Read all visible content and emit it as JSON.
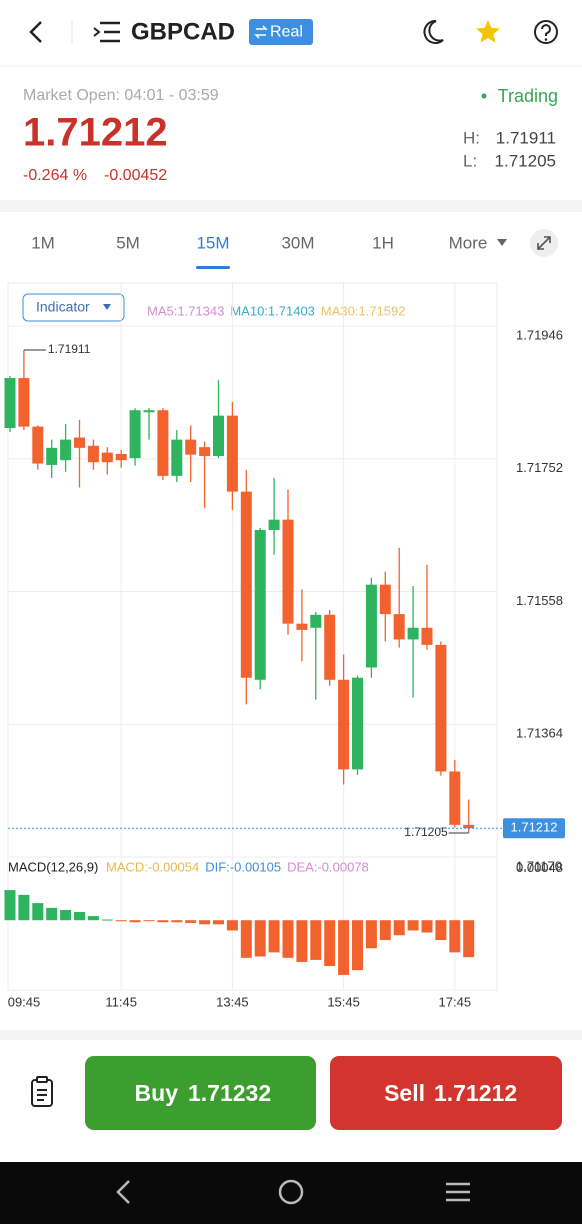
{
  "header": {
    "symbol": "GBPCAD",
    "account": "Real"
  },
  "quote": {
    "market_open": "Market Open: 04:01 - 03:59",
    "status": "Trading",
    "price": "1.71212",
    "change_pct": "-0.264 %",
    "change": "-0.00452",
    "high_label": "H:",
    "high": "1.71911",
    "low_label": "L:",
    "low": "1.71205"
  },
  "tabs": [
    "1M",
    "5M",
    "15M",
    "30M",
    "1H",
    "More"
  ],
  "active_tab": 2,
  "chart_data": {
    "type": "candlestick",
    "indicator_button": "Indicator",
    "ma_legend": [
      {
        "label": "MA5:1.71343",
        "color": "#d48bd6"
      },
      {
        "label": "MA10:1.71403",
        "color": "#35acc9"
      },
      {
        "label": "MA30:1.71592",
        "color": "#eec16b"
      }
    ],
    "categories": [
      "09:45",
      null,
      null,
      null,
      null,
      null,
      null,
      null,
      "11:45",
      null,
      null,
      null,
      null,
      null,
      null,
      null,
      "13:45",
      null,
      null,
      null,
      null,
      null,
      null,
      null,
      "15:45",
      null,
      null,
      null,
      null,
      null,
      null,
      null,
      "17:45",
      null
    ],
    "open": [
      1.71797,
      1.7187,
      1.71799,
      1.71743,
      1.7175,
      1.71783,
      1.71771,
      1.71761,
      1.71759,
      1.71753,
      1.7182,
      1.71823,
      1.71727,
      1.7178,
      1.71769,
      1.71756,
      1.71815,
      1.71704,
      1.71429,
      1.71648,
      1.71663,
      1.71511,
      1.71505,
      1.71524,
      1.71429,
      1.71298,
      1.71447,
      1.71568,
      1.71525,
      1.71488,
      1.71505,
      1.7148,
      1.71295,
      1.71217
    ],
    "high": [
      1.71873,
      1.71911,
      1.71801,
      1.7178,
      1.71803,
      1.71809,
      1.7178,
      1.71769,
      1.71765,
      1.71826,
      1.71826,
      1.71826,
      1.71794,
      1.71801,
      1.71777,
      1.71867,
      1.71835,
      1.71736,
      1.71651,
      1.71724,
      1.71707,
      1.71561,
      1.71528,
      1.71531,
      1.71466,
      1.71435,
      1.71578,
      1.71587,
      1.71622,
      1.71566,
      1.71597,
      1.71485,
      1.71312,
      1.71254
    ],
    "low": [
      1.71791,
      1.71794,
      1.71736,
      1.71724,
      1.71733,
      1.7171,
      1.71736,
      1.71729,
      1.71739,
      1.71742,
      1.7178,
      1.71721,
      1.71718,
      1.71718,
      1.7168,
      1.71753,
      1.71677,
      1.71393,
      1.71415,
      1.71612,
      1.71495,
      1.71456,
      1.714,
      1.7142,
      1.71276,
      1.7129,
      1.71432,
      1.71485,
      1.71476,
      1.71403,
      1.71473,
      1.71289,
      1.71213,
      1.71205
    ],
    "close": [
      1.7187,
      1.71799,
      1.71745,
      1.71768,
      1.7178,
      1.71768,
      1.71747,
      1.71747,
      1.7175,
      1.71823,
      1.71823,
      1.71727,
      1.7178,
      1.71758,
      1.71756,
      1.71815,
      1.71704,
      1.71432,
      1.71648,
      1.71663,
      1.71511,
      1.71502,
      1.71524,
      1.71429,
      1.71298,
      1.71432,
      1.71568,
      1.71525,
      1.71488,
      1.71505,
      1.7148,
      1.71295,
      1.71217,
      1.71212
    ],
    "up_color": "#2eb35f",
    "down_color": "#f2622e",
    "ylim": [
      1.7117,
      1.72006
    ],
    "yticks": [
      1.71946,
      1.71752,
      1.71558,
      1.71364,
      {
        "value": 1.7117,
        "label": "1.71170"
      }
    ],
    "grid": true,
    "high_marker": 1.71911,
    "low_marker": 1.71205,
    "last_price": 1.71212,
    "macd": {
      "title": "MACD(12,26,9)",
      "legend": [
        {
          "label": "MACD:-0.00054",
          "color": "#e8b84a"
        },
        {
          "label": "DIF:-0.00105",
          "color": "#3d8fe0"
        },
        {
          "label": "DEA:-0.00078",
          "color": "#d48bd6"
        }
      ],
      "values": [
        0.00044,
        0.00037,
        0.00025,
        0.00018,
        0.00015,
        0.00012,
        6e-05,
        1e-05,
        -1e-05,
        -3e-05,
        -1e-05,
        -3e-05,
        -3e-05,
        -4e-05,
        -6e-05,
        -6e-05,
        -0.00015,
        -0.00055,
        -0.00053,
        -0.00047,
        -0.00055,
        -0.00061,
        -0.00058,
        -0.00067,
        -0.0008,
        -0.00073,
        -0.00041,
        -0.00029,
        -0.00022,
        -0.00015,
        -0.00018,
        -0.00029,
        -0.00047,
        -0.00054
      ],
      "ylim": [
        -0.00102,
        0.00088
      ],
      "yticks": [
        0.00048
      ]
    }
  },
  "actions": {
    "buy": "Buy",
    "buy_price": "1.71232",
    "sell": "Sell",
    "sell_price": "1.71212"
  }
}
